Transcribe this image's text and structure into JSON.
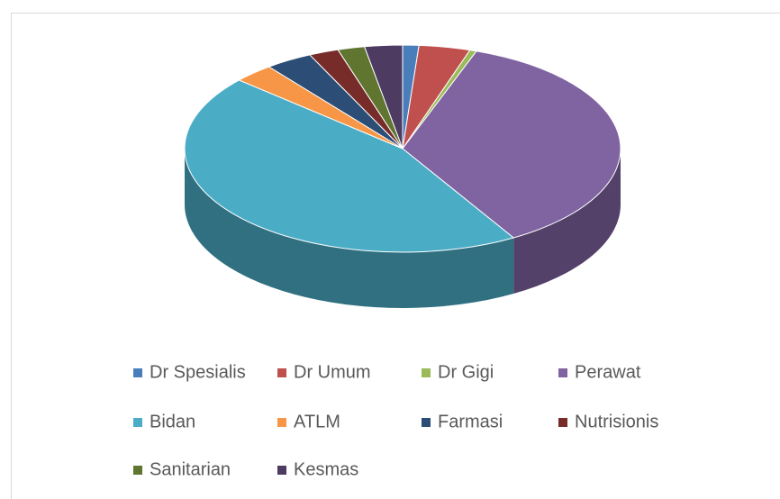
{
  "chart_data": {
    "type": "pie",
    "categories": [
      "Dr Spesialis",
      "Dr Umum",
      "Dr Gigi",
      "Perawat",
      "Bidan",
      "ATLM",
      "Farmasi",
      "Nutrisionis",
      "Sanitarian",
      "Kesmas"
    ],
    "values": [
      1.2,
      3.8,
      0.5,
      36,
      45,
      3,
      3.5,
      2.2,
      2,
      2.8
    ],
    "colors": [
      "#4a7ebb",
      "#c0504d",
      "#9bbb59",
      "#8064a2",
      "#4bacc6",
      "#f79646",
      "#2c4d75",
      "#772c2a",
      "#5f7530",
      "#4d3b62"
    ],
    "legend": "bottom"
  }
}
